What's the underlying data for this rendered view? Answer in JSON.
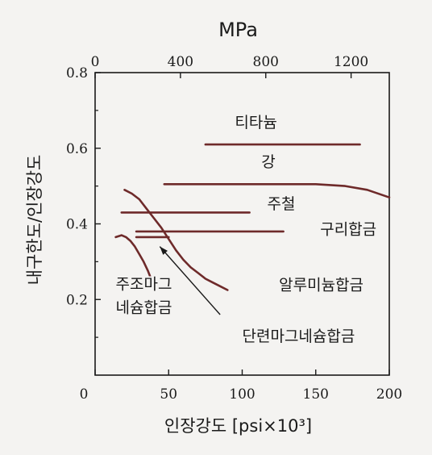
{
  "chart_data": {
    "type": "line",
    "title": "",
    "xlabel": "인장강도 [psi×10³]",
    "ylabel": "내구한도/인장강도",
    "top_axis_label": "MPa",
    "xlim": [
      0,
      200
    ],
    "ylim": [
      0,
      0.8
    ],
    "top_xlim_mpa": [
      0,
      1379
    ],
    "x_ticks": [
      "0",
      "50",
      "100",
      "150",
      "200"
    ],
    "x_tick_values": [
      0,
      50,
      100,
      150,
      200
    ],
    "y_ticks": [
      "0.2",
      "0.4",
      "0.6",
      "0.8"
    ],
    "y_tick_values": [
      0.2,
      0.4,
      0.6,
      0.8
    ],
    "top_ticks": [
      "0",
      "400",
      "800",
      "1200"
    ],
    "top_tick_values_mpa": [
      0,
      400,
      800,
      1200
    ],
    "grid": false,
    "line_color": "#6e2a2a",
    "series": [
      {
        "name": "티타늄",
        "x": [
          75,
          180
        ],
        "y": [
          0.61,
          0.61
        ]
      },
      {
        "name": "강",
        "x": [
          47,
          100,
          150,
          170,
          185,
          200
        ],
        "y": [
          0.505,
          0.505,
          0.505,
          0.5,
          0.49,
          0.47
        ]
      },
      {
        "name": "주철",
        "x": [
          18,
          105
        ],
        "y": [
          0.43,
          0.43
        ]
      },
      {
        "name": "구리합금",
        "x": [
          28,
          128
        ],
        "y": [
          0.38,
          0.38
        ]
      },
      {
        "name": "단련마그네슘합금",
        "x": [
          28,
          50
        ],
        "y": [
          0.365,
          0.365
        ]
      },
      {
        "name": "알루미늄합금",
        "x": [
          20,
          25,
          30,
          35,
          40,
          45,
          50,
          55,
          60,
          65,
          70,
          75,
          80,
          85,
          90
        ],
        "y": [
          0.49,
          0.48,
          0.465,
          0.44,
          0.415,
          0.39,
          0.36,
          0.33,
          0.305,
          0.285,
          0.27,
          0.255,
          0.245,
          0.235,
          0.225
        ]
      },
      {
        "name": "주조마그네슘합금",
        "x": [
          14,
          18,
          21,
          24,
          27,
          30,
          33,
          36,
          40
        ],
        "y": [
          0.365,
          0.37,
          0.365,
          0.355,
          0.34,
          0.32,
          0.3,
          0.275,
          0.235
        ]
      }
    ],
    "annotations": [
      {
        "text": "티타늄",
        "x": 95,
        "y": 0.655
      },
      {
        "text": "강",
        "x": 113,
        "y": 0.55
      },
      {
        "text": "주철",
        "x": 117,
        "y": 0.44
      },
      {
        "text": "구리합금",
        "x": 153,
        "y": 0.372
      },
      {
        "text": "알루미늄합금",
        "x": 125,
        "y": 0.225
      },
      {
        "text": "주조마그",
        "x": 14,
        "y": 0.227
      },
      {
        "text": "네슘합금",
        "x": 14,
        "y": 0.165
      },
      {
        "text": "단련마그네슘합금",
        "x": 100,
        "y": 0.09
      }
    ],
    "arrow": {
      "from": [
        85,
        0.16
      ],
      "to": [
        44,
        0.34
      ]
    }
  }
}
